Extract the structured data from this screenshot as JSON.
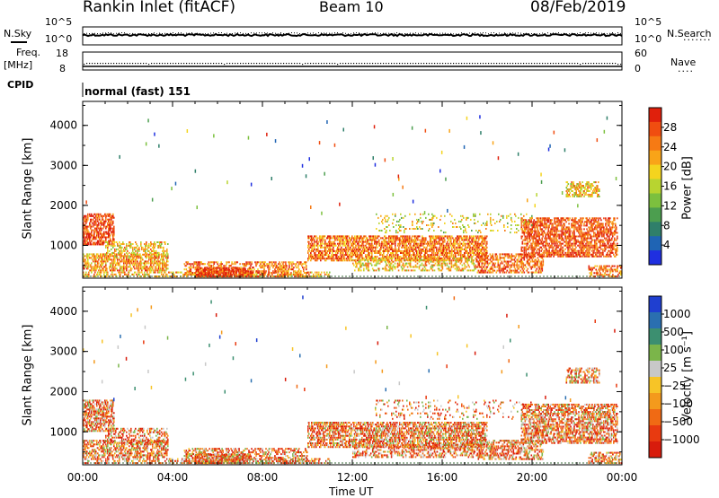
{
  "header": {
    "station": "Rankin Inlet (fitACF)",
    "beam": "Beam 10",
    "date": "08/Feb/2019"
  },
  "top_panels": {
    "nsky_label": "N.Sky",
    "nsearch_label": "N.Search",
    "nsky_ticks": [
      "10^5",
      "10^0"
    ],
    "nsearch_ticks": [
      "10^5",
      "10^0"
    ],
    "freq_label_1": "Freq.",
    "freq_label_2": "[MHz]",
    "freq_ticks": [
      "18",
      "8"
    ],
    "nave_label": "Nave",
    "nave_ticks": [
      "60",
      "0"
    ],
    "cpid_label": "CPID",
    "cpid_value": "normal (fast) 151"
  },
  "chart_data": [
    {
      "type": "heatmap",
      "name": "power",
      "ylabel": "Slant Range [km]",
      "colorbar_label": "Power [dB]",
      "ylim": [
        180,
        4600
      ],
      "yticks": [
        1000,
        2000,
        3000,
        4000
      ],
      "colorbar_ticks": [
        4,
        8,
        12,
        16,
        20,
        24,
        28
      ],
      "colorbar_range": [
        0,
        30
      ],
      "colors": [
        "#1f2fe0",
        "#1f64b4",
        "#2f7f6a",
        "#4c9e4f",
        "#7cc03e",
        "#b8d430",
        "#f4d41e",
        "#f9a418",
        "#f67a14",
        "#f04d10",
        "#e0200c"
      ]
    },
    {
      "type": "heatmap",
      "name": "velocity",
      "ylabel": "Slant Range [km]",
      "colorbar_label": "Velocity [m s⁻¹]",
      "ylim": [
        180,
        4600
      ],
      "yticks": [
        1000,
        2000,
        3000,
        4000
      ],
      "colorbar_ticks": [
        "1000",
        "500",
        "100",
        "25",
        "−25",
        "−100",
        "−500",
        "−1000"
      ],
      "colors": [
        "#1f3fd0",
        "#2a6fb0",
        "#3c8f70",
        "#7bb54a",
        "#c8c8c8",
        "#f7c427",
        "#f49a1c",
        "#f06a14",
        "#e83a10",
        "#d81c0c"
      ]
    }
  ],
  "xaxis": {
    "label": "Time UT",
    "ticks": [
      "00:00",
      "04:00",
      "08:00",
      "12:00",
      "16:00",
      "20:00",
      "00:00"
    ]
  }
}
